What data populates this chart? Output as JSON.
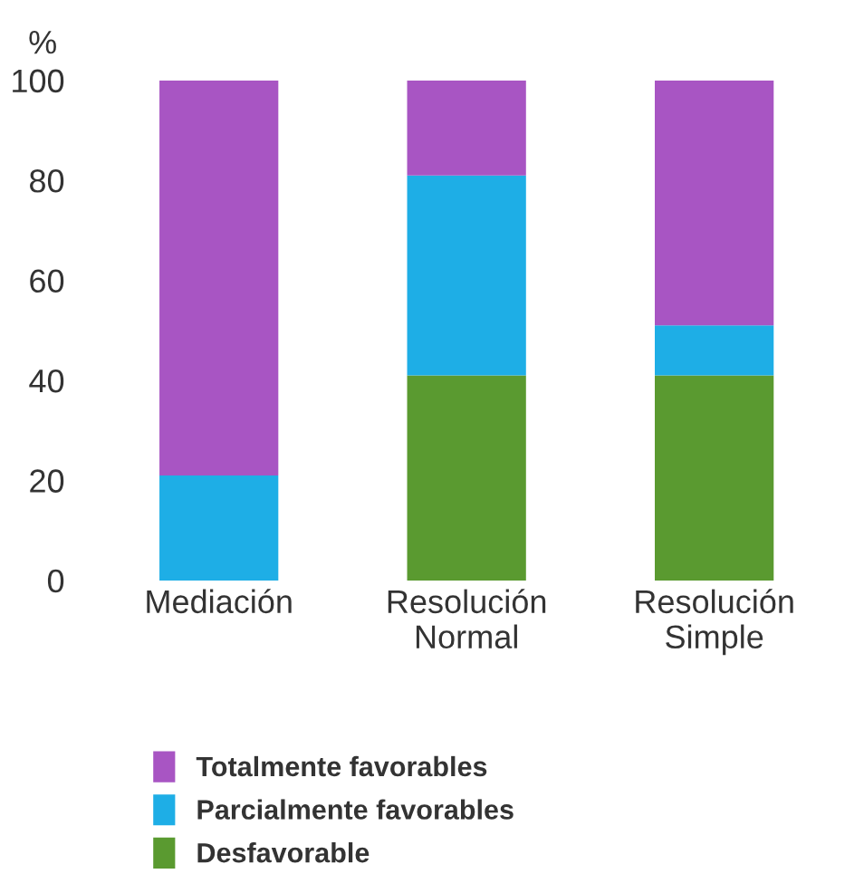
{
  "chart_data": {
    "type": "bar",
    "stacked": true,
    "ylabel": "%",
    "categories": [
      "Mediación",
      "Resolución\nNormal",
      "Resolución\nSimple"
    ],
    "series": [
      {
        "name": "Desfavorable",
        "color": "#5a9a30",
        "values": [
          0,
          41,
          41
        ]
      },
      {
        "name": "Parcialmente favorables",
        "color": "#1eaee6",
        "values": [
          21,
          40,
          10
        ]
      },
      {
        "name": "Totalmente favorables",
        "color": "#a855c3",
        "values": [
          79,
          19,
          49
        ]
      }
    ],
    "ylim": [
      0,
      100
    ],
    "yticks": [
      0,
      20,
      40,
      60,
      80,
      100
    ],
    "grid": false,
    "legend": "bottom"
  }
}
